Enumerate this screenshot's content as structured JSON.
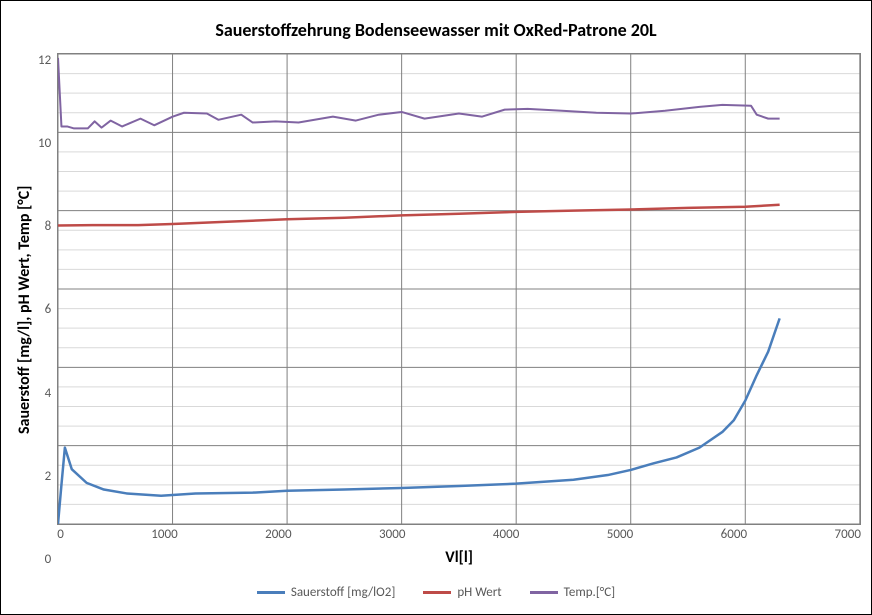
{
  "chart": {
    "type": "line",
    "title": "Sauerstoffzehrung Bodenseewasser mit OxRed-Patrone 20L",
    "title_fontsize": 18,
    "title_weight": "bold",
    "x_axis": {
      "label": "Vl[l]",
      "label_fontsize": 16,
      "min": 0,
      "max": 7000,
      "tick_step": 1000,
      "ticks": [
        0,
        1000,
        2000,
        3000,
        4000,
        5000,
        6000,
        7000
      ],
      "tick_fontsize": 13
    },
    "y_axis": {
      "label": "Sauerstoff [mg/l], pH Wert, Temp [°C]",
      "label_fontsize": 16,
      "min": 0,
      "max": 12,
      "tick_step": 2,
      "ticks": [
        0,
        2,
        4,
        6,
        8,
        10,
        12
      ],
      "tick_fontsize": 13
    },
    "background_color": "#ffffff",
    "plot_border_color": "#808080",
    "grid_color_major": "#808080",
    "grid_color_minor": "#d9d9d9",
    "minor_y_step": 0.5,
    "series": {
      "sauerstoff": {
        "label": "Sauerstoff [mg/lO2]",
        "color": "#4a7ebb",
        "line_width": 2.5,
        "points": [
          [
            0,
            0.0
          ],
          [
            30,
            1.0
          ],
          [
            60,
            1.95
          ],
          [
            120,
            1.4
          ],
          [
            250,
            1.05
          ],
          [
            400,
            0.88
          ],
          [
            600,
            0.78
          ],
          [
            900,
            0.72
          ],
          [
            1200,
            0.78
          ],
          [
            1700,
            0.8
          ],
          [
            2000,
            0.85
          ],
          [
            2500,
            0.88
          ],
          [
            3000,
            0.92
          ],
          [
            3500,
            0.97
          ],
          [
            4000,
            1.03
          ],
          [
            4500,
            1.13
          ],
          [
            4800,
            1.25
          ],
          [
            5000,
            1.38
          ],
          [
            5200,
            1.55
          ],
          [
            5400,
            1.7
          ],
          [
            5600,
            1.95
          ],
          [
            5800,
            2.35
          ],
          [
            5900,
            2.65
          ],
          [
            6000,
            3.15
          ],
          [
            6100,
            3.8
          ],
          [
            6200,
            4.4
          ],
          [
            6300,
            5.25
          ]
        ]
      },
      "ph": {
        "label": "pH Wert",
        "color": "#be4b48",
        "line_width": 2.5,
        "points": [
          [
            0,
            7.62
          ],
          [
            300,
            7.63
          ],
          [
            700,
            7.63
          ],
          [
            1000,
            7.66
          ],
          [
            1500,
            7.72
          ],
          [
            2000,
            7.78
          ],
          [
            2500,
            7.82
          ],
          [
            3000,
            7.88
          ],
          [
            3500,
            7.92
          ],
          [
            4000,
            7.97
          ],
          [
            4500,
            8.0
          ],
          [
            5000,
            8.03
          ],
          [
            5500,
            8.07
          ],
          [
            6000,
            8.1
          ],
          [
            6300,
            8.15
          ]
        ]
      },
      "temp": {
        "label": "Temp.[°C]",
        "color": "#8064a2",
        "line_width": 2.0,
        "points": [
          [
            0,
            11.9
          ],
          [
            30,
            10.15
          ],
          [
            80,
            10.15
          ],
          [
            140,
            10.1
          ],
          [
            260,
            10.1
          ],
          [
            320,
            10.28
          ],
          [
            380,
            10.12
          ],
          [
            460,
            10.3
          ],
          [
            560,
            10.15
          ],
          [
            720,
            10.35
          ],
          [
            840,
            10.18
          ],
          [
            1000,
            10.4
          ],
          [
            1100,
            10.5
          ],
          [
            1300,
            10.48
          ],
          [
            1400,
            10.32
          ],
          [
            1600,
            10.45
          ],
          [
            1700,
            10.25
          ],
          [
            1900,
            10.28
          ],
          [
            2100,
            10.25
          ],
          [
            2400,
            10.4
          ],
          [
            2600,
            10.3
          ],
          [
            2800,
            10.45
          ],
          [
            3000,
            10.52
          ],
          [
            3200,
            10.35
          ],
          [
            3500,
            10.48
          ],
          [
            3700,
            10.4
          ],
          [
            3900,
            10.58
          ],
          [
            4100,
            10.6
          ],
          [
            4400,
            10.55
          ],
          [
            4700,
            10.5
          ],
          [
            5000,
            10.48
          ],
          [
            5300,
            10.55
          ],
          [
            5600,
            10.65
          ],
          [
            5800,
            10.7
          ],
          [
            6050,
            10.68
          ],
          [
            6100,
            10.45
          ],
          [
            6200,
            10.35
          ],
          [
            6300,
            10.35
          ]
        ]
      }
    },
    "legend": {
      "position": "bottom",
      "fontsize": 13,
      "line_width": 3
    }
  }
}
